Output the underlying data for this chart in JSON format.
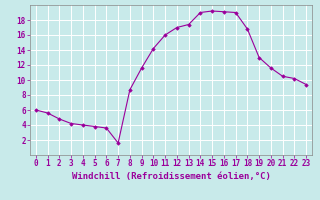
{
  "x": [
    0,
    1,
    2,
    3,
    4,
    5,
    6,
    7,
    8,
    9,
    10,
    11,
    12,
    13,
    14,
    15,
    16,
    17,
    18,
    19,
    20,
    21,
    22,
    23
  ],
  "y": [
    6.0,
    5.6,
    4.8,
    4.2,
    4.0,
    3.8,
    3.6,
    1.6,
    8.7,
    11.6,
    14.2,
    16.0,
    17.0,
    17.4,
    19.0,
    19.2,
    19.1,
    19.0,
    16.8,
    13.0,
    11.6,
    10.5,
    10.2,
    9.4
  ],
  "line_color": "#9b009b",
  "marker": "D",
  "marker_size": 1.8,
  "line_width": 0.8,
  "bg_color": "#c8eaea",
  "xlabel": "Windchill (Refroidissement éolien,°C)",
  "xlim": [
    -0.5,
    23.5
  ],
  "ylim": [
    0,
    20
  ],
  "yticks": [
    2,
    4,
    6,
    8,
    10,
    12,
    14,
    16,
    18
  ],
  "xticks": [
    0,
    1,
    2,
    3,
    4,
    5,
    6,
    7,
    8,
    9,
    10,
    11,
    12,
    13,
    14,
    15,
    16,
    17,
    18,
    19,
    20,
    21,
    22,
    23
  ],
  "grid_color": "#b0d8d8",
  "tick_label_color": "#9b009b",
  "xlabel_color": "#9b009b",
  "xlabel_fontsize": 6.5,
  "tick_fontsize": 5.5
}
